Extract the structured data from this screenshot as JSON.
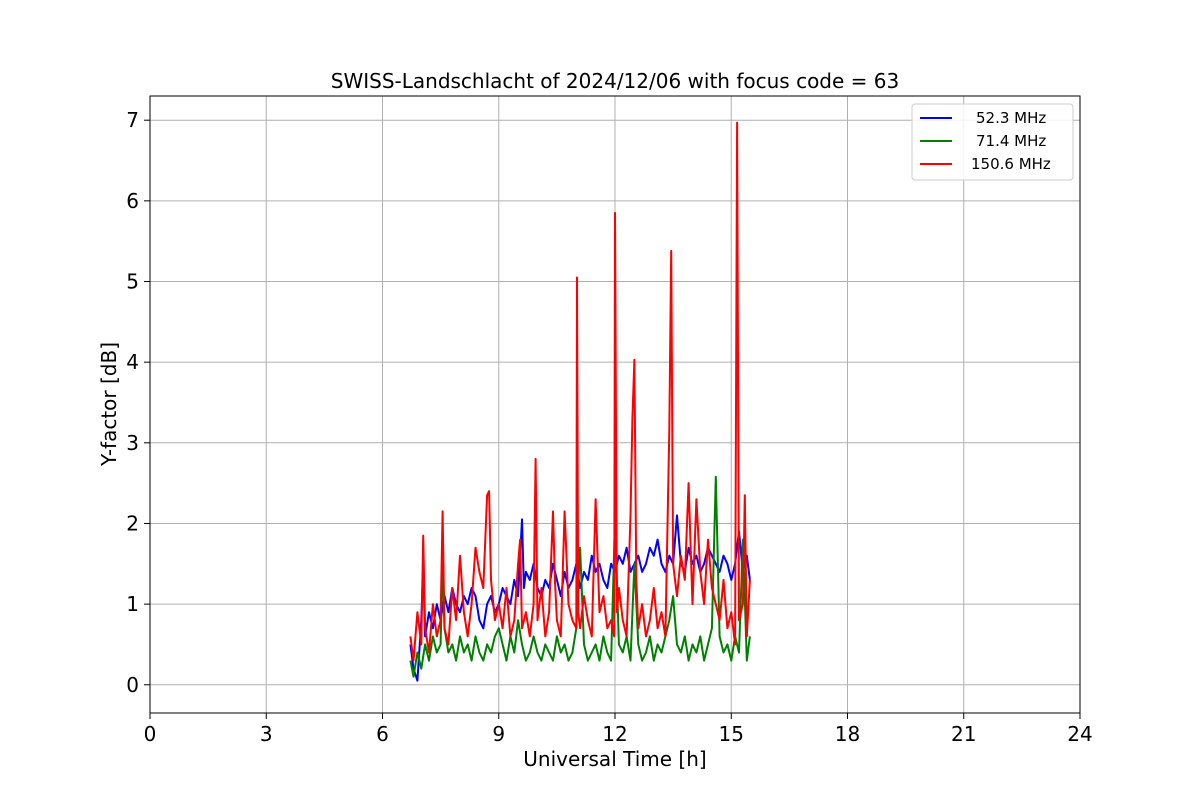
{
  "chart_data": {
    "type": "line",
    "title": "SWISS-Landschlacht of 2024/12/06 with focus code = 63",
    "xlabel": "Universal Time [h]",
    "ylabel": "Y-factor [dB]",
    "xlim": [
      0,
      24
    ],
    "ylim": [
      -0.35,
      7.3
    ],
    "xticks": [
      0,
      3,
      6,
      9,
      12,
      15,
      18,
      21,
      24
    ],
    "yticks": [
      0,
      1,
      2,
      3,
      4,
      5,
      6,
      7
    ],
    "grid": true,
    "legend_position": "top-right",
    "series": [
      {
        "name": "52.3 MHz",
        "color": "#0000ff",
        "x": [
          6.72,
          6.8,
          6.9,
          7.0,
          7.05,
          7.1,
          7.2,
          7.3,
          7.4,
          7.5,
          7.6,
          7.7,
          7.8,
          7.9,
          8.0,
          8.1,
          8.2,
          8.3,
          8.4,
          8.5,
          8.6,
          8.7,
          8.8,
          8.9,
          9.0,
          9.1,
          9.2,
          9.3,
          9.4,
          9.5,
          9.6,
          9.65,
          9.7,
          9.8,
          9.9,
          10.0,
          10.1,
          10.2,
          10.3,
          10.4,
          10.5,
          10.6,
          10.7,
          10.8,
          10.9,
          11.0,
          11.1,
          11.2,
          11.3,
          11.4,
          11.5,
          11.6,
          11.7,
          11.8,
          11.9,
          12.0,
          12.1,
          12.2,
          12.3,
          12.4,
          12.5,
          12.6,
          12.7,
          12.8,
          12.9,
          13.0,
          13.1,
          13.2,
          13.3,
          13.4,
          13.5,
          13.6,
          13.7,
          13.8,
          13.9,
          14.0,
          14.1,
          14.2,
          14.3,
          14.4,
          14.5,
          14.6,
          14.7,
          14.8,
          14.9,
          15.0,
          15.1,
          15.2,
          15.3,
          15.4,
          15.48
        ],
        "values": [
          0.5,
          0.2,
          0.05,
          0.8,
          1.5,
          0.6,
          0.9,
          0.7,
          1.0,
          0.8,
          1.1,
          0.9,
          1.2,
          1.0,
          0.9,
          1.1,
          1.0,
          1.2,
          1.1,
          0.8,
          0.7,
          1.0,
          1.1,
          0.9,
          1.0,
          1.2,
          1.1,
          1.0,
          1.3,
          1.1,
          2.05,
          1.2,
          1.4,
          1.3,
          1.5,
          1.2,
          1.1,
          1.3,
          1.2,
          1.5,
          1.3,
          1.1,
          1.4,
          1.2,
          1.3,
          1.5,
          1.2,
          1.4,
          1.3,
          1.6,
          1.4,
          1.5,
          1.3,
          1.2,
          1.5,
          1.4,
          1.6,
          1.5,
          1.7,
          1.4,
          1.5,
          1.6,
          1.4,
          1.5,
          1.7,
          1.6,
          1.8,
          1.5,
          1.4,
          1.6,
          1.5,
          2.1,
          1.5,
          1.4,
          1.7,
          1.5,
          1.6,
          1.4,
          1.5,
          1.7,
          1.6,
          1.5,
          1.4,
          1.6,
          1.5,
          1.3,
          1.5,
          1.9,
          1.4,
          1.6,
          1.3
        ]
      },
      {
        "name": "71.4 MHz",
        "color": "#008000",
        "x": [
          6.72,
          6.8,
          6.9,
          7.0,
          7.1,
          7.2,
          7.3,
          7.4,
          7.5,
          7.55,
          7.6,
          7.7,
          7.8,
          7.9,
          8.0,
          8.1,
          8.2,
          8.3,
          8.4,
          8.5,
          8.6,
          8.7,
          8.8,
          8.9,
          9.0,
          9.1,
          9.2,
          9.3,
          9.4,
          9.5,
          9.6,
          9.7,
          9.8,
          9.9,
          10.0,
          10.1,
          10.2,
          10.3,
          10.4,
          10.5,
          10.6,
          10.7,
          10.8,
          10.9,
          11.0,
          11.1,
          11.2,
          11.3,
          11.4,
          11.5,
          11.6,
          11.7,
          11.8,
          11.9,
          12.0,
          12.1,
          12.2,
          12.3,
          12.4,
          12.5,
          12.6,
          12.7,
          12.8,
          12.9,
          13.0,
          13.1,
          13.2,
          13.3,
          13.4,
          13.5,
          13.6,
          13.7,
          13.8,
          13.9,
          14.0,
          14.1,
          14.2,
          14.3,
          14.4,
          14.5,
          14.6,
          14.7,
          14.8,
          14.9,
          15.0,
          15.1,
          15.2,
          15.3,
          15.4,
          15.48
        ],
        "values": [
          0.3,
          0.1,
          0.4,
          0.2,
          0.5,
          0.3,
          0.6,
          0.4,
          0.5,
          1.6,
          0.7,
          0.4,
          0.5,
          0.3,
          0.6,
          0.4,
          0.5,
          0.3,
          0.6,
          0.4,
          0.3,
          0.5,
          0.4,
          0.6,
          0.7,
          0.5,
          0.3,
          0.6,
          0.4,
          0.8,
          0.5,
          0.3,
          0.4,
          0.6,
          0.4,
          0.3,
          0.5,
          0.4,
          0.3,
          0.6,
          0.4,
          0.5,
          0.3,
          0.4,
          0.7,
          1.7,
          0.5,
          0.3,
          0.4,
          0.5,
          0.3,
          0.6,
          0.4,
          0.3,
          2.05,
          0.5,
          0.4,
          0.6,
          0.3,
          1.5,
          0.5,
          0.3,
          0.4,
          0.6,
          0.3,
          0.5,
          0.4,
          0.6,
          0.8,
          1.1,
          0.5,
          0.4,
          0.6,
          0.3,
          0.5,
          0.4,
          0.6,
          0.3,
          0.5,
          0.7,
          2.58,
          0.6,
          0.4,
          0.5,
          0.3,
          0.6,
          0.4,
          1.8,
          0.3,
          0.6
        ]
      },
      {
        "name": "150.6 MHz",
        "color": "#ff0000",
        "x": [
          6.72,
          6.8,
          6.9,
          7.0,
          7.05,
          7.1,
          7.2,
          7.3,
          7.4,
          7.5,
          7.55,
          7.6,
          7.7,
          7.8,
          7.9,
          8.0,
          8.1,
          8.2,
          8.3,
          8.4,
          8.5,
          8.6,
          8.7,
          8.75,
          8.8,
          8.9,
          9.0,
          9.1,
          9.2,
          9.3,
          9.4,
          9.5,
          9.55,
          9.6,
          9.7,
          9.8,
          9.9,
          9.95,
          10.0,
          10.1,
          10.2,
          10.3,
          10.4,
          10.45,
          10.5,
          10.6,
          10.7,
          10.8,
          10.9,
          11.0,
          11.02,
          11.05,
          11.1,
          11.2,
          11.3,
          11.4,
          11.5,
          11.6,
          11.7,
          11.8,
          11.9,
          11.98,
          12.0,
          12.05,
          12.1,
          12.2,
          12.3,
          12.4,
          12.45,
          12.5,
          12.55,
          12.6,
          12.7,
          12.8,
          12.9,
          13.0,
          13.1,
          13.2,
          13.3,
          13.4,
          13.45,
          13.5,
          13.6,
          13.7,
          13.8,
          13.9,
          14.0,
          14.1,
          14.2,
          14.3,
          14.4,
          14.5,
          14.6,
          14.7,
          14.8,
          14.9,
          15.0,
          15.1,
          15.15,
          15.2,
          15.3,
          15.35,
          15.4,
          15.48
        ],
        "values": [
          0.6,
          0.3,
          0.9,
          0.5,
          1.85,
          0.7,
          0.4,
          1.0,
          0.6,
          0.8,
          2.15,
          0.7,
          0.5,
          1.2,
          0.8,
          1.6,
          0.9,
          0.6,
          1.0,
          1.7,
          1.4,
          1.2,
          2.35,
          2.4,
          1.3,
          0.8,
          1.0,
          0.7,
          1.2,
          0.6,
          0.8,
          1.5,
          1.8,
          0.7,
          0.9,
          0.6,
          1.0,
          2.8,
          0.8,
          1.2,
          0.6,
          0.9,
          2.15,
          1.3,
          0.8,
          0.6,
          2.15,
          1.0,
          0.8,
          0.7,
          5.05,
          0.9,
          0.7,
          1.1,
          0.8,
          0.6,
          2.3,
          0.9,
          1.1,
          0.7,
          0.8,
          0.6,
          5.85,
          0.9,
          1.2,
          0.8,
          0.6,
          2.1,
          3.3,
          4.03,
          1.3,
          0.7,
          1.0,
          0.6,
          0.8,
          1.2,
          0.7,
          0.9,
          0.6,
          3.15,
          5.38,
          1.5,
          1.1,
          1.6,
          1.3,
          2.5,
          1.0,
          2.3,
          1.4,
          1.0,
          1.8,
          1.2,
          1.0,
          0.8,
          1.3,
          0.7,
          0.9,
          0.5,
          6.97,
          0.8,
          1.0,
          2.35,
          0.6,
          1.3
        ]
      }
    ]
  }
}
